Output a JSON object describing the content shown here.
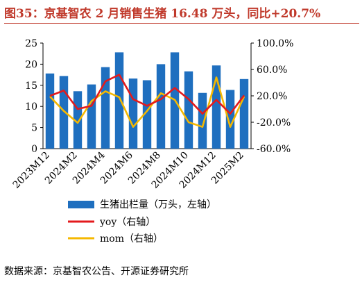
{
  "title": "图35：京基智农 2 月销售生猪 16.48 万头，同比+20.7%",
  "source": "数据来源：京基智农公告、开源证券研究所",
  "colors": {
    "bar": "#1f6fbf",
    "yoy": "#e31a1c",
    "mom": "#f5b800",
    "title": "#c0392b"
  },
  "chart_data": {
    "type": "bar+line",
    "categories": [
      "2023M12",
      "2024M1",
      "2024M2",
      "2024M3",
      "2024M4",
      "2024M5",
      "2024M6",
      "2024M7",
      "2024M8",
      "2024M9",
      "2024M10",
      "2024M11",
      "2024M12",
      "2025M1",
      "2025M2"
    ],
    "x_tick_labels": [
      "2023M12",
      "2024M2",
      "2024M4",
      "2024M6",
      "2024M8",
      "2024M10",
      "2024M12",
      "2025M2"
    ],
    "y_left": {
      "min": 0,
      "max": 25,
      "ticks": [
        "0",
        "5",
        "10",
        "15",
        "20",
        "25"
      ]
    },
    "y_right": {
      "min": -60,
      "max": 100,
      "ticks": [
        "-60.0%",
        "-20.0%",
        "20.0%",
        "60.0%",
        "100.0%"
      ]
    },
    "series": [
      {
        "name": "生猪出栏量（万头，左轴）",
        "type": "bar",
        "axis": "left",
        "values": [
          17.8,
          17.2,
          13.6,
          15.2,
          19.3,
          22.8,
          16.6,
          16.2,
          20.0,
          22.8,
          18.3,
          13.2,
          19.7,
          13.9,
          16.48
        ]
      },
      {
        "name": "yoy（右轴）",
        "type": "line",
        "axis": "right",
        "values": [
          20,
          28,
          0,
          5,
          42,
          52,
          15,
          5,
          15,
          32,
          15,
          -7,
          14,
          -7,
          20.7
        ]
      },
      {
        "name": "mom（右轴）",
        "type": "line",
        "axis": "right",
        "values": [
          19,
          -3,
          -21,
          12,
          27,
          18,
          -27,
          -3,
          24,
          14,
          -20,
          -27,
          48,
          -27,
          19
        ]
      }
    ],
    "legend_position": "bottom",
    "grid": false
  }
}
